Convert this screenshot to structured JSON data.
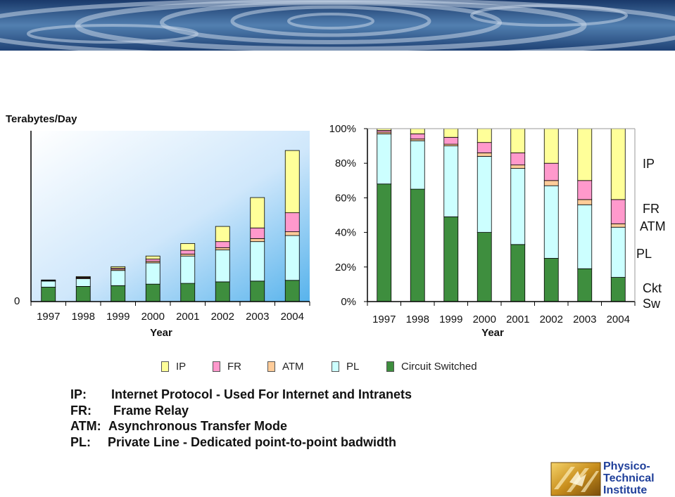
{
  "colors": {
    "ip": "#ffff99",
    "fr": "#ff99cc",
    "atm": "#ffcc99",
    "pl": "#ccffff",
    "ckt": "#3e8e3e"
  },
  "chart_data": [
    {
      "type": "bar",
      "stacked": true,
      "ylabel": "Terabytes/Day",
      "xlabel": "Year",
      "y_ticks": [
        "0"
      ],
      "categories": [
        "1997",
        "1998",
        "1999",
        "2000",
        "2001",
        "2002",
        "2003",
        "2004"
      ],
      "ylim": [
        0,
        225
      ],
      "series": [
        {
          "name": "Circuit Switched",
          "values": [
            19,
            20,
            21,
            23,
            24,
            26,
            27,
            28
          ]
        },
        {
          "name": "PL",
          "values": [
            8,
            10,
            20,
            28,
            36,
            42,
            52,
            59
          ]
        },
        {
          "name": "ATM",
          "values": [
            0.5,
            1,
            1.5,
            2,
            2.5,
            3,
            4,
            5
          ]
        },
        {
          "name": "FR",
          "values": [
            0.5,
            1,
            1.5,
            3,
            5,
            8,
            14,
            25
          ]
        },
        {
          "name": "IP",
          "values": [
            0.5,
            1,
            2,
            4,
            9,
            20,
            40,
            82
          ]
        }
      ]
    },
    {
      "type": "bar",
      "stacked": true,
      "percent": true,
      "xlabel": "Year",
      "y_ticks": [
        "0%",
        "20%",
        "40%",
        "60%",
        "80%",
        "100%"
      ],
      "categories": [
        "1997",
        "1998",
        "1999",
        "2000",
        "2001",
        "2002",
        "2003",
        "2004"
      ],
      "ylim": [
        0,
        100
      ],
      "series": [
        {
          "name": "Circuit Switched",
          "values": [
            68,
            65,
            49,
            40,
            33,
            25,
            19,
            14
          ]
        },
        {
          "name": "PL",
          "values": [
            29,
            28,
            41,
            44,
            44,
            42,
            37,
            29
          ]
        },
        {
          "name": "ATM",
          "values": [
            1,
            1,
            1,
            2,
            2,
            3,
            3,
            2
          ]
        },
        {
          "name": "FR",
          "values": [
            1,
            3,
            4,
            6,
            7,
            10,
            11,
            14
          ]
        },
        {
          "name": "IP",
          "values": [
            1,
            3,
            5,
            8,
            14,
            20,
            30,
            41
          ]
        }
      ],
      "side_labels": [
        "IP",
        "FR",
        "ATM",
        "PL",
        "Ckt",
        "Sw"
      ]
    }
  ],
  "legend": [
    "IP",
    "FR",
    "ATM",
    "PL",
    "Circuit Switched"
  ],
  "notes": [
    {
      "key": "IP:",
      "text": "Internet Protocol - Used For Internet and Intranets"
    },
    {
      "key": "FR:",
      "text": "Frame Relay"
    },
    {
      "key": "ATM:",
      "text": "Asynchronous Transfer Mode"
    },
    {
      "key": "PL:",
      "text": "Private Line - Dedicated point-to-point badwidth"
    }
  ],
  "logo": [
    "Physico-",
    "Technical",
    "Institute"
  ]
}
